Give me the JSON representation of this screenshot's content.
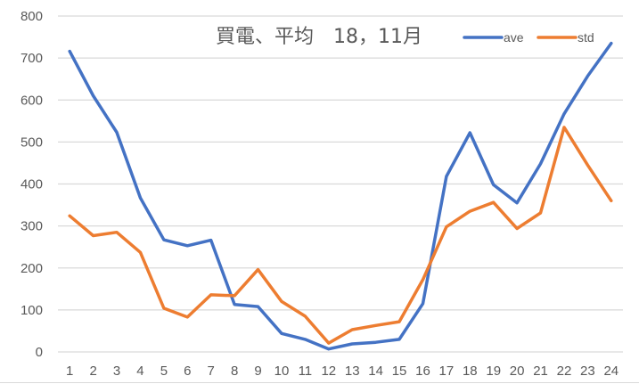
{
  "chart_data": {
    "type": "line",
    "title": "買電、平均　18，11月",
    "xlabel": "",
    "ylabel": "",
    "categories": [
      "1",
      "2",
      "3",
      "4",
      "5",
      "6",
      "7",
      "8",
      "9",
      "10",
      "11",
      "12",
      "13",
      "14",
      "15",
      "16",
      "17",
      "18",
      "19",
      "20",
      "21",
      "22",
      "23",
      "24"
    ],
    "series": [
      {
        "name": "ave",
        "color": "#4472c4",
        "values": [
          716,
          610,
          523,
          367,
          267,
          253,
          266,
          113,
          108,
          44,
          30,
          7,
          19,
          23,
          30,
          115,
          418,
          522,
          398,
          355,
          448,
          567,
          657,
          735
        ]
      },
      {
        "name": "std",
        "color": "#ed7d31",
        "values": [
          324,
          277,
          285,
          237,
          104,
          83,
          136,
          134,
          196,
          120,
          85,
          21,
          53,
          63,
          72,
          172,
          298,
          335,
          356,
          294,
          331,
          535,
          445,
          360
        ]
      }
    ],
    "ylim": [
      0,
      800
    ],
    "yticks": [
      0,
      100,
      200,
      300,
      400,
      500,
      600,
      700,
      800
    ],
    "grid": true,
    "legend_position": "top-right"
  },
  "colors": {
    "grid": "#d9d9d9",
    "text": "#595959",
    "ave": "#4472c4",
    "std": "#ed7d31"
  }
}
